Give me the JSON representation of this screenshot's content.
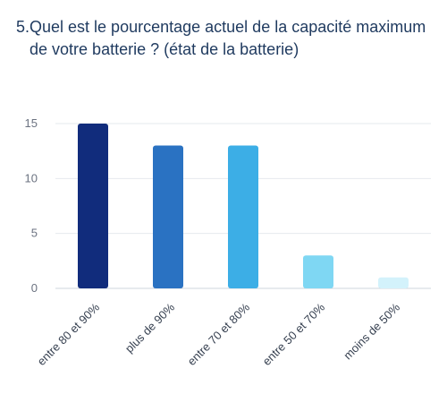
{
  "question": {
    "number": "5.",
    "text": "Quel est le pourcentage actuel de la capacité maximum de votre batterie ? (état de la batterie)"
  },
  "chart_data": {
    "type": "bar",
    "title": "5. Quel est le pourcentage actuel de la capacité maximum de votre batterie ? (état de la batterie)",
    "xlabel": "",
    "ylabel": "",
    "categories": [
      "entre 80 et 90%",
      "plus de 90%",
      "entre 70 et 80%",
      "entre 50 et 70%",
      "moins de 50%"
    ],
    "values": [
      15,
      13,
      13,
      3,
      1
    ],
    "colors": [
      "#112c7c",
      "#2a72c2",
      "#3caee6",
      "#7fd7f3",
      "#d3f2fb"
    ],
    "ylim": [
      0,
      15
    ],
    "yticks": [
      0,
      5,
      10,
      15
    ],
    "grid": true,
    "legend": "none"
  }
}
